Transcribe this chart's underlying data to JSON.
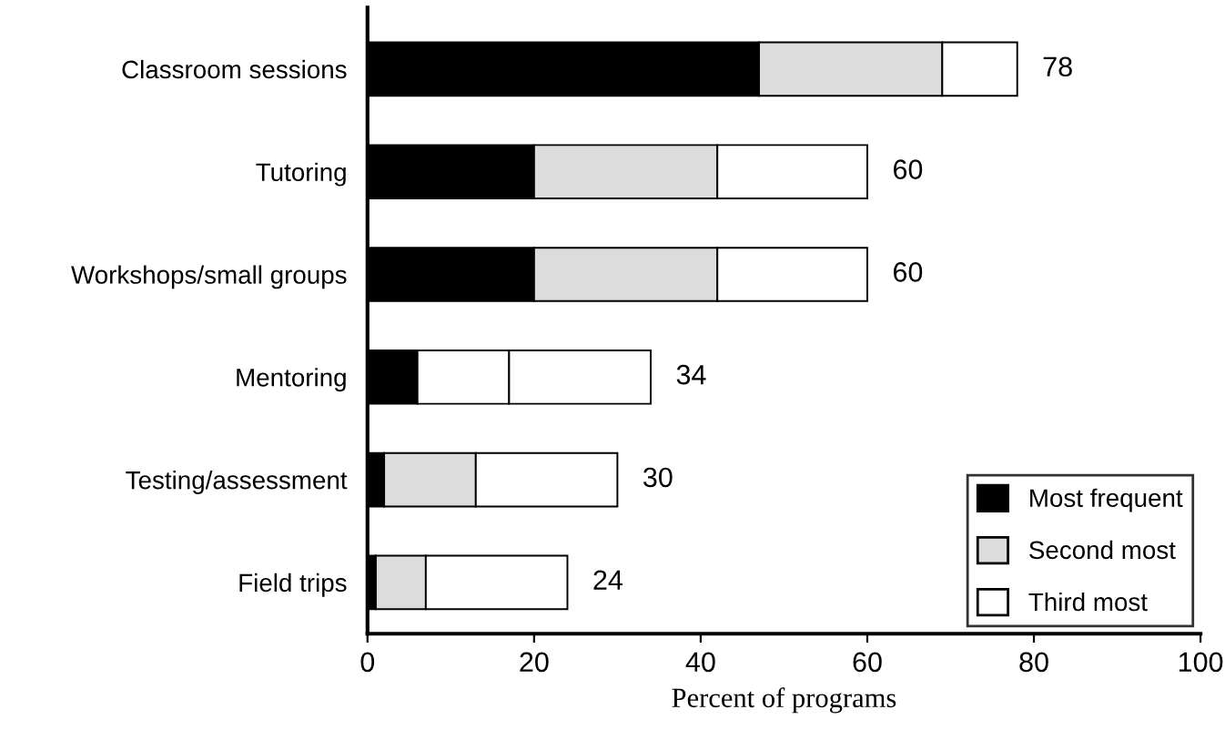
{
  "chart_data": {
    "type": "bar",
    "orientation": "horizontal",
    "stacked": true,
    "xlabel": "Percent of programs",
    "categories": [
      "Classroom sessions",
      "Tutoring",
      "Workshops/small groups",
      "Mentoring",
      "Testing/assessment",
      "Field trips"
    ],
    "series": [
      {
        "name": "Most frequent",
        "color": "#000000",
        "values": [
          47,
          20,
          20,
          6,
          2,
          1
        ]
      },
      {
        "name": "Second most",
        "color": "#dcdcdc",
        "colors": [
          "#dcdcdc",
          "#dcdcdc",
          "#dcdcdc",
          "#ffffff",
          "#dcdcdc",
          "#dcdcdc"
        ],
        "values": [
          22,
          22,
          22,
          11,
          11,
          6
        ]
      },
      {
        "name": "Third most",
        "color": "#ffffff",
        "values": [
          9,
          18,
          18,
          17,
          17,
          17
        ]
      }
    ],
    "totals": [
      "78",
      "60",
      "60",
      "34",
      "30",
      "24"
    ],
    "xlim": [
      0,
      100
    ],
    "xticks": [
      0,
      20,
      40,
      60,
      80,
      100
    ],
    "grid": false,
    "legend": "bottom right"
  }
}
